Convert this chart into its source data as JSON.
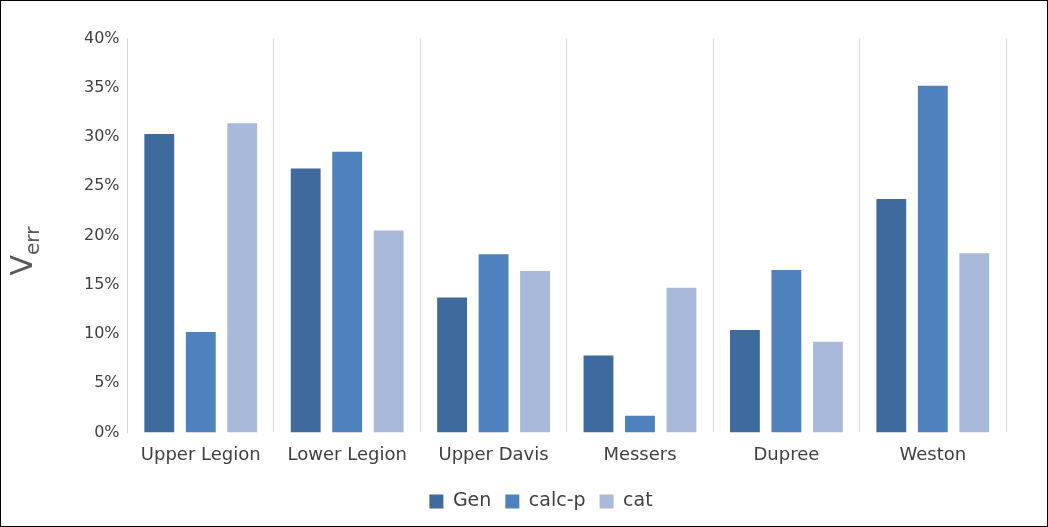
{
  "chart_data": {
    "type": "bar",
    "ylabel": "V$_{err}$",
    "categories": [
      "Upper Legion",
      "Lower Legion",
      "Upper Davis",
      "Messers",
      "Dupree",
      "Weston"
    ],
    "series": [
      {
        "name": "Gen",
        "color": "#3e6a9e",
        "values": [
          30.3,
          26.8,
          13.7,
          7.8,
          10.4,
          23.7
        ]
      },
      {
        "name": "calc-p",
        "color": "#4f81bd",
        "values": [
          10.2,
          28.5,
          18.1,
          1.7,
          16.5,
          35.2
        ]
      },
      {
        "name": "cat",
        "color": "#a9b9d9",
        "values": [
          31.4,
          20.5,
          16.4,
          14.7,
          9.2,
          18.2
        ]
      }
    ],
    "ylim": [
      0,
      40
    ],
    "yticks": [
      {
        "value": 0,
        "label": "0%"
      },
      {
        "value": 5,
        "label": "5%"
      },
      {
        "value": 10,
        "label": "10%"
      },
      {
        "value": 15,
        "label": "15%"
      },
      {
        "value": 20,
        "label": "20%"
      },
      {
        "value": 25,
        "label": "25%"
      },
      {
        "value": 30,
        "label": "30%"
      },
      {
        "value": 35,
        "label": "35%"
      },
      {
        "value": 40,
        "label": "40%"
      }
    ],
    "grid": "x",
    "legend": "bottom"
  }
}
